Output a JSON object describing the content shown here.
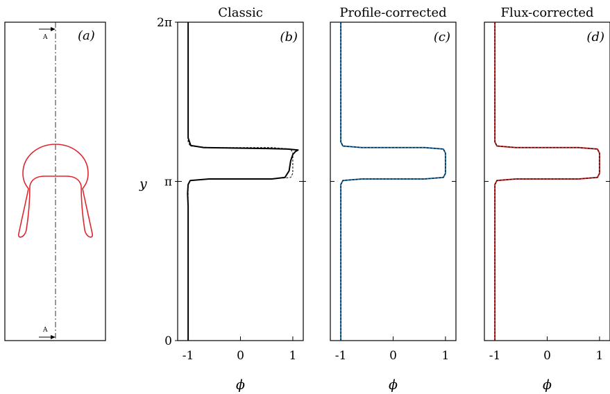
{
  "panel_a": {
    "label": "(a)",
    "section_top": "A",
    "section_bottom": "A"
  },
  "y_axis": {
    "label": "y",
    "ticks": [
      {
        "value": 0,
        "label": "0"
      },
      {
        "value": 3.14159,
        "label": "π"
      },
      {
        "value": 6.28319,
        "label": "2π"
      }
    ]
  },
  "x_axis": {
    "label": "ϕ",
    "ticks": [
      {
        "value": -1,
        "label": "-1"
      },
      {
        "value": 0,
        "label": "0"
      },
      {
        "value": 1,
        "label": "1"
      }
    ]
  },
  "colors": {
    "classic": "#000000",
    "profile": "#1f77b4",
    "flux": "#d62728",
    "shape": "#e0262d",
    "reference": "#000000"
  },
  "chart_data": [
    {
      "type": "line",
      "title": "Classic",
      "panel_label": "(b)",
      "xlabel": "ϕ",
      "ylabel": "y",
      "xlim": [
        -1.2,
        1.2
      ],
      "ylim": [
        0,
        6.28319
      ],
      "series": [
        {
          "role": "computed",
          "style": "solid",
          "points": [
            [
              -1.0,
              0.0
            ],
            [
              -1.0,
              2.65
            ],
            [
              -1.01,
              2.9
            ],
            [
              -1.0,
              3.08
            ],
            [
              -0.96,
              3.16
            ],
            [
              -0.6,
              3.19
            ],
            [
              0.6,
              3.19
            ],
            [
              0.85,
              3.22
            ],
            [
              0.93,
              3.35
            ],
            [
              0.96,
              3.55
            ],
            [
              1.0,
              3.67
            ],
            [
              1.05,
              3.73
            ],
            [
              1.1,
              3.76
            ],
            [
              0.9,
              3.78
            ],
            [
              0.5,
              3.79
            ],
            [
              -0.7,
              3.81
            ],
            [
              -0.95,
              3.85
            ],
            [
              -1.0,
              4.0
            ],
            [
              -1.0,
              6.28319
            ]
          ]
        },
        {
          "role": "reference",
          "style": "dashed",
          "points": [
            [
              -1.0,
              0.0
            ],
            [
              -1.0,
              3.08
            ],
            [
              -0.96,
              3.16
            ],
            [
              -0.6,
              3.19
            ],
            [
              0.6,
              3.19
            ],
            [
              0.96,
              3.22
            ],
            [
              1.0,
              3.3
            ],
            [
              1.0,
              3.7
            ],
            [
              0.96,
              3.78
            ],
            [
              0.6,
              3.81
            ],
            [
              -0.6,
              3.81
            ],
            [
              -0.96,
              3.84
            ],
            [
              -1.0,
              3.92
            ],
            [
              -1.0,
              6.28319
            ]
          ]
        }
      ]
    },
    {
      "type": "line",
      "title": "Profile-corrected",
      "panel_label": "(c)",
      "xlabel": "ϕ",
      "xlim": [
        -1.2,
        1.2
      ],
      "ylim": [
        0,
        6.28319
      ],
      "series": [
        {
          "role": "computed",
          "style": "solid",
          "points": [
            [
              -1.0,
              0.0
            ],
            [
              -1.0,
              3.08
            ],
            [
              -0.96,
              3.16
            ],
            [
              -0.6,
              3.19
            ],
            [
              0.6,
              3.19
            ],
            [
              0.96,
              3.22
            ],
            [
              1.0,
              3.3
            ],
            [
              1.0,
              3.7
            ],
            [
              0.96,
              3.78
            ],
            [
              0.6,
              3.81
            ],
            [
              -0.6,
              3.81
            ],
            [
              -0.96,
              3.84
            ],
            [
              -1.0,
              3.92
            ],
            [
              -1.0,
              6.28319
            ]
          ]
        },
        {
          "role": "reference",
          "style": "dashed",
          "points": [
            [
              -1.0,
              0.0
            ],
            [
              -1.0,
              3.08
            ],
            [
              -0.96,
              3.16
            ],
            [
              -0.6,
              3.19
            ],
            [
              0.6,
              3.19
            ],
            [
              0.96,
              3.22
            ],
            [
              1.0,
              3.3
            ],
            [
              1.0,
              3.7
            ],
            [
              0.96,
              3.78
            ],
            [
              0.6,
              3.81
            ],
            [
              -0.6,
              3.81
            ],
            [
              -0.96,
              3.84
            ],
            [
              -1.0,
              3.92
            ],
            [
              -1.0,
              6.28319
            ]
          ]
        }
      ]
    },
    {
      "type": "line",
      "title": "Flux-corrected",
      "panel_label": "(d)",
      "xlabel": "ϕ",
      "xlim": [
        -1.2,
        1.2
      ],
      "ylim": [
        0,
        6.28319
      ],
      "series": [
        {
          "role": "computed",
          "style": "solid",
          "points": [
            [
              -1.0,
              0.0
            ],
            [
              -1.0,
              3.08
            ],
            [
              -0.96,
              3.16
            ],
            [
              -0.6,
              3.19
            ],
            [
              0.6,
              3.19
            ],
            [
              0.96,
              3.22
            ],
            [
              1.0,
              3.3
            ],
            [
              1.0,
              3.7
            ],
            [
              0.96,
              3.78
            ],
            [
              0.6,
              3.81
            ],
            [
              -0.6,
              3.81
            ],
            [
              -0.96,
              3.84
            ],
            [
              -1.0,
              3.92
            ],
            [
              -1.0,
              6.28319
            ]
          ]
        },
        {
          "role": "reference",
          "style": "dashed",
          "points": [
            [
              -1.0,
              0.0
            ],
            [
              -1.0,
              3.08
            ],
            [
              -0.96,
              3.16
            ],
            [
              -0.6,
              3.19
            ],
            [
              0.6,
              3.19
            ],
            [
              0.96,
              3.22
            ],
            [
              1.0,
              3.3
            ],
            [
              1.0,
              3.7
            ],
            [
              0.96,
              3.78
            ],
            [
              0.6,
              3.81
            ],
            [
              -0.6,
              3.81
            ],
            [
              -0.96,
              3.84
            ],
            [
              -1.0,
              3.92
            ],
            [
              -1.0,
              6.28319
            ]
          ]
        }
      ]
    }
  ]
}
